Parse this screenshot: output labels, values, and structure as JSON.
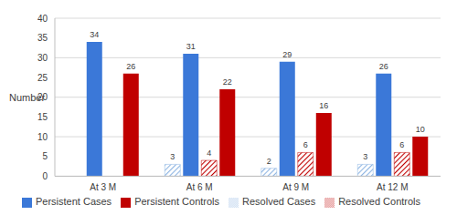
{
  "chart_data": {
    "type": "bar",
    "y_label": "Number",
    "categories": [
      "At 3 M",
      "At 6 M",
      "At 9 M",
      "At 12 M"
    ],
    "series": [
      {
        "name": "Resolved Cases",
        "color": "#8db4e2",
        "values": [
          0,
          3,
          2,
          3
        ]
      },
      {
        "name": "Persistent Cases",
        "color": "#3b78d8",
        "values": [
          34,
          31,
          29,
          26
        ]
      },
      {
        "name": "Resolved Controls",
        "color": "#c00000",
        "values": [
          0,
          4,
          6,
          6
        ]
      },
      {
        "name": "Persistent Controls",
        "color": "#c00000",
        "values": [
          26,
          22,
          16,
          10
        ]
      }
    ],
    "ylim": [
      0,
      40
    ],
    "yticks": [
      0,
      5,
      10,
      15,
      20,
      25,
      30,
      35,
      40
    ],
    "grid": true,
    "legend": "bottom",
    "data_labels": true
  }
}
